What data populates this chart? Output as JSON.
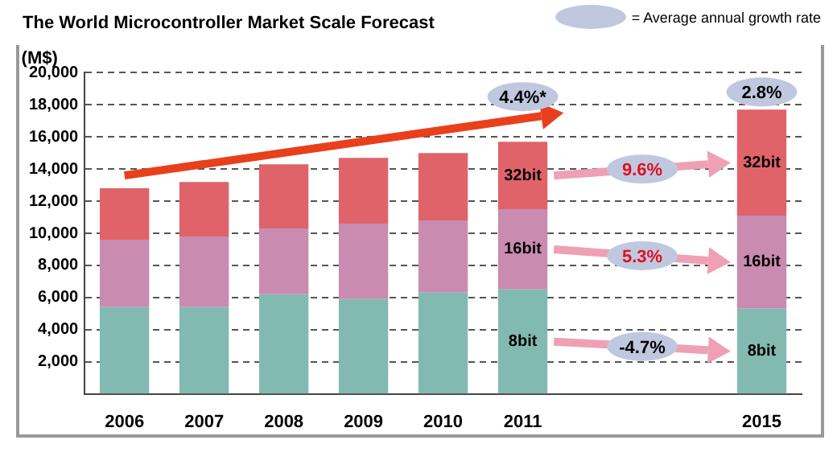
{
  "chart_data": {
    "type": "bar",
    "stacked": true,
    "title": "The World Microcontroller Market Scale Forecast",
    "ylabel": "(M$)",
    "categories": [
      "2006",
      "2007",
      "2008",
      "2009",
      "2010",
      "2011",
      null,
      null,
      "2015"
    ],
    "series": [
      {
        "color": "#82bab1",
        "values": [
          5400,
          5400,
          6200,
          5900,
          6300,
          6500,
          null,
          null,
          5300
        ]
      },
      {
        "color": "#c98bb0",
        "values": [
          4200,
          4400,
          4100,
          4700,
          4500,
          5000,
          null,
          null,
          5800
        ]
      },
      {
        "color": "#e0636a",
        "values": [
          3200,
          3400,
          4000,
          4100,
          4200,
          4200,
          null,
          null,
          6600
        ]
      }
    ],
    "ylim": [
      0,
      20000
    ],
    "yticks": [
      {
        "value": 2000,
        "label": "2,000"
      },
      {
        "value": 4000,
        "label": "4,000"
      },
      {
        "value": 6000,
        "label": "6,000"
      },
      {
        "value": 8000,
        "label": "8,000"
      },
      {
        "value": 10000,
        "label": "10,000"
      },
      {
        "value": 12000,
        "label": "12,000"
      },
      {
        "value": 14000,
        "label": "14,000"
      },
      {
        "value": 16000,
        "label": "16,000"
      },
      {
        "value": 18000,
        "label": "18,000"
      },
      {
        "value": 20000,
        "label": "20,000"
      }
    ],
    "grid": "y",
    "line_style": "dashed",
    "legend": false,
    "annotations": [
      "= Average annual growth rate",
      "4.4%*",
      "2.8%",
      "-4.7%",
      "5.3%",
      "9.6%",
      "8bit",
      "16bit",
      "32bit",
      "8bit",
      "16bit",
      "32bit"
    ]
  }
}
